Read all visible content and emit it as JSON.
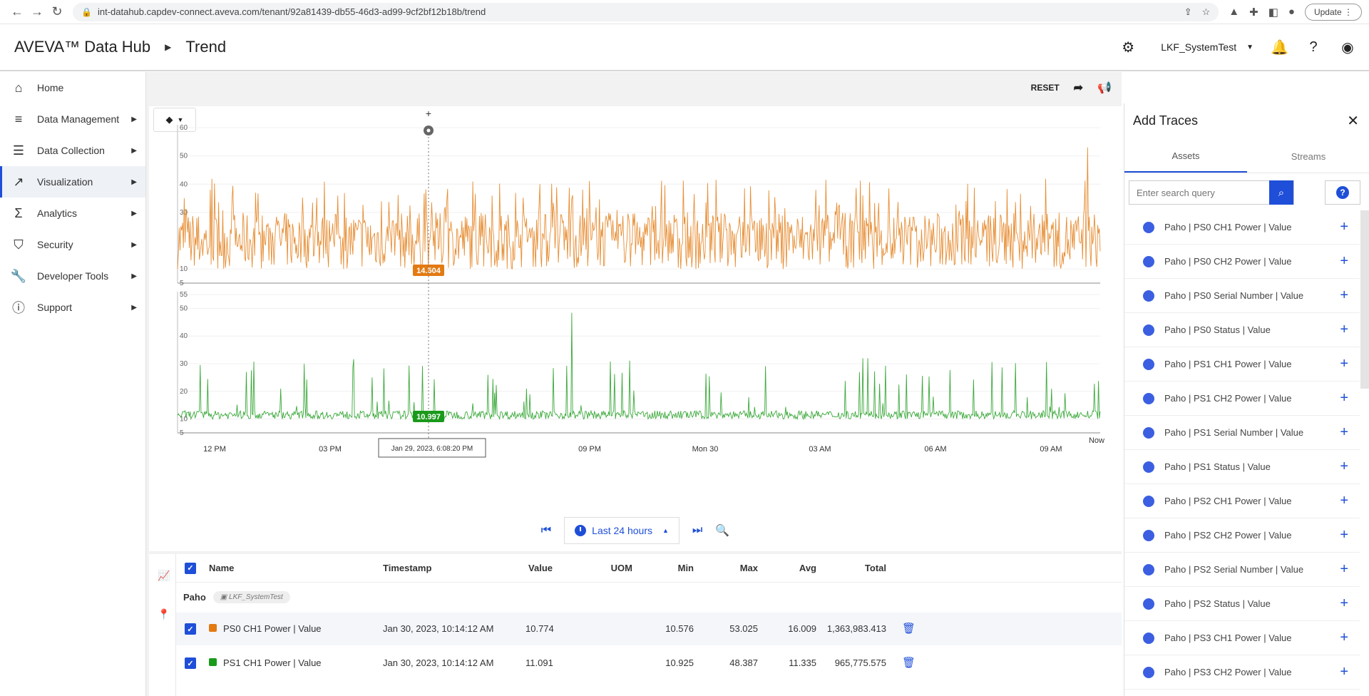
{
  "browser": {
    "url": "int-datahub.capdev-connect.aveva.com/tenant/92a81439-db55-46d3-ad99-9cf2bf12b18b/trend",
    "update_label": "Update"
  },
  "header": {
    "brand": "AVEVA™ Data Hub",
    "page": "Trend",
    "tenant": "LKF_SystemTest"
  },
  "sidebar": {
    "items": [
      {
        "label": "Home",
        "icon": "home-icon"
      },
      {
        "label": "Data Management",
        "icon": "database-icon"
      },
      {
        "label": "Data Collection",
        "icon": "collection-icon"
      },
      {
        "label": "Visualization",
        "icon": "chart-icon"
      },
      {
        "label": "Analytics",
        "icon": "sigma-icon"
      },
      {
        "label": "Security",
        "icon": "shield-icon"
      },
      {
        "label": "Developer Tools",
        "icon": "wrench-icon"
      },
      {
        "label": "Support",
        "icon": "info-icon"
      }
    ]
  },
  "toolbar": {
    "reset_label": "RESET"
  },
  "chart_data": {
    "type": "line",
    "x_labels": [
      "12 PM",
      "03 PM",
      "09 PM",
      "Mon 30",
      "03 AM",
      "06 AM",
      "09 AM",
      "Now"
    ],
    "cursor_time": "Jan 29, 2023, 6:08:20 PM",
    "panels": [
      {
        "series": "PS0 CH1 Power | Value",
        "color": "#e37a12",
        "cursor_value": "14.504",
        "y_ticks": [
          "60",
          "50",
          "40",
          "30",
          "10",
          "5"
        ],
        "ylim": [
          5,
          60
        ]
      },
      {
        "series": "PS1 CH1 Power | Value",
        "color": "#1a9a1a",
        "cursor_value": "10.997",
        "y_ticks": [
          "55",
          "50",
          "40",
          "30",
          "20",
          "10",
          "5"
        ],
        "ylim": [
          5,
          55
        ]
      }
    ]
  },
  "timebar": {
    "range_label": "Last 24 hours"
  },
  "legend": {
    "columns": [
      "Name",
      "Timestamp",
      "Value",
      "UOM",
      "Min",
      "Max",
      "Avg",
      "Total"
    ],
    "group": "Paho",
    "group_chip": "LKF_SystemTest",
    "rows": [
      {
        "name": "PS0 CH1 Power | Value",
        "color": "#e37a12",
        "timestamp": "Jan 30, 2023, 10:14:12 AM",
        "value": "10.774",
        "uom": "",
        "min": "10.576",
        "max": "53.025",
        "avg": "16.009",
        "total": "1,363,983.413"
      },
      {
        "name": "PS1 CH1 Power | Value",
        "color": "#1a9a1a",
        "timestamp": "Jan 30, 2023, 10:14:12 AM",
        "value": "11.091",
        "uom": "",
        "min": "10.925",
        "max": "48.387",
        "avg": "11.335",
        "total": "965,775.575"
      }
    ]
  },
  "panel": {
    "title": "Add Traces",
    "tabs": [
      "Assets",
      "Streams"
    ],
    "search_placeholder": "Enter search query",
    "traces": [
      "Paho | PS0 CH1 Power | Value",
      "Paho | PS0 CH2 Power | Value",
      "Paho | PS0 Serial Number | Value",
      "Paho | PS0 Status | Value",
      "Paho | PS1 CH1 Power | Value",
      "Paho | PS1 CH2 Power | Value",
      "Paho | PS1 Serial Number | Value",
      "Paho | PS1 Status | Value",
      "Paho | PS2 CH1 Power | Value",
      "Paho | PS2 CH2 Power | Value",
      "Paho | PS2 Serial Number | Value",
      "Paho | PS2 Status | Value",
      "Paho | PS3 CH1 Power | Value",
      "Paho | PS3 CH2 Power | Value"
    ]
  }
}
